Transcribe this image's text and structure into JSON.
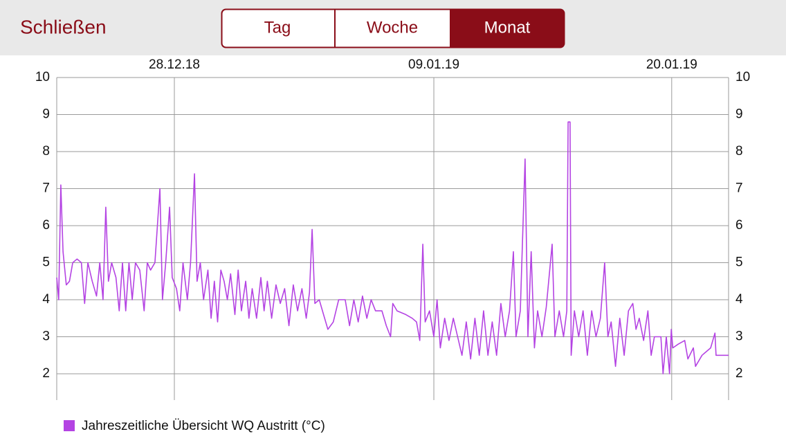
{
  "header": {
    "close": "Schließen",
    "tabs": [
      "Tag",
      "Woche",
      "Monat"
    ]
  },
  "chart_data": {
    "type": "line",
    "x": [
      -5.44,
      -5.35,
      -5.25,
      -5.15,
      -5.0,
      -4.85,
      -4.7,
      -4.5,
      -4.3,
      -4.15,
      -4.0,
      -3.8,
      -3.6,
      -3.45,
      -3.3,
      -3.17,
      -3.05,
      -2.9,
      -2.7,
      -2.55,
      -2.4,
      -2.25,
      -2.1,
      -1.95,
      -1.8,
      -1.6,
      -1.4,
      -1.25,
      -1.1,
      -0.9,
      -0.67,
      -0.55,
      -0.4,
      -0.22,
      -0.1,
      0.1,
      0.25,
      0.4,
      0.6,
      0.75,
      0.93,
      1.05,
      1.2,
      1.35,
      1.55,
      1.7,
      1.85,
      2.0,
      2.15,
      2.3,
      2.45,
      2.6,
      2.8,
      2.95,
      3.1,
      3.3,
      3.45,
      3.6,
      3.8,
      4.0,
      4.15,
      4.3,
      4.5,
      4.7,
      4.9,
      5.1,
      5.3,
      5.5,
      5.7,
      5.9,
      6.1,
      6.25,
      6.37,
      6.5,
      6.7,
      6.9,
      7.1,
      7.35,
      7.6,
      7.9,
      8.1,
      8.3,
      8.5,
      8.7,
      8.9,
      9.1,
      9.3,
      9.6,
      9.8,
      10.0,
      10.1,
      10.3,
      10.7,
      11.0,
      11.2,
      11.35,
      11.49,
      11.6,
      11.8,
      12.0,
      12.15,
      12.3,
      12.5,
      12.7,
      12.9,
      13.1,
      13.3,
      13.5,
      13.7,
      13.9,
      14.1,
      14.3,
      14.5,
      14.7,
      14.9,
      15.1,
      15.3,
      15.5,
      15.68,
      15.8,
      16.0,
      16.22,
      16.35,
      16.5,
      16.65,
      16.8,
      17.0,
      17.2,
      17.47,
      17.6,
      17.8,
      18.0,
      18.15,
      18.21,
      18.3,
      18.35,
      18.5,
      18.7,
      18.9,
      19.1,
      19.3,
      19.5,
      19.7,
      19.9,
      20.05,
      20.2,
      20.4,
      20.6,
      20.8,
      21.0,
      21.2,
      21.35,
      21.5,
      21.7,
      21.9,
      22.05,
      22.2,
      22.5,
      22.6,
      22.75,
      22.9,
      22.98,
      23.05,
      23.3,
      23.6,
      23.75,
      24.0,
      24.1,
      24.4,
      24.8,
      25.0,
      25.05,
      25.63
    ],
    "series": [
      {
        "name": "Jahreszeitliche Übersicht WQ Austritt (°C)",
        "color": "#b443e3",
        "values": [
          4.6,
          4.0,
          7.1,
          5.3,
          4.4,
          4.5,
          5.0,
          5.1,
          5.0,
          3.9,
          5.0,
          4.5,
          4.1,
          5.0,
          4.0,
          6.5,
          4.5,
          5.0,
          4.6,
          3.7,
          5.0,
          3.7,
          5.0,
          4.0,
          5.0,
          4.8,
          3.7,
          5.0,
          4.8,
          5.0,
          7.0,
          4.0,
          5.0,
          6.5,
          4.6,
          4.3,
          3.7,
          5.0,
          4.0,
          5.0,
          7.4,
          4.5,
          5.0,
          4.0,
          4.8,
          3.5,
          4.5,
          3.4,
          4.8,
          4.5,
          4.0,
          4.7,
          3.6,
          4.8,
          3.7,
          4.5,
          3.5,
          4.3,
          3.5,
          4.6,
          3.7,
          4.5,
          3.5,
          4.4,
          3.9,
          4.3,
          3.3,
          4.4,
          3.7,
          4.3,
          3.5,
          4.2,
          5.9,
          3.9,
          4.0,
          3.6,
          3.2,
          3.4,
          4.0,
          4.0,
          3.3,
          4.0,
          3.4,
          4.1,
          3.5,
          4.0,
          3.7,
          3.7,
          3.3,
          3.0,
          3.9,
          3.7,
          3.6,
          3.5,
          3.4,
          2.9,
          5.5,
          3.4,
          3.7,
          3.0,
          4.0,
          2.7,
          3.5,
          2.9,
          3.5,
          3.0,
          2.5,
          3.4,
          2.4,
          3.5,
          2.5,
          3.7,
          2.5,
          3.4,
          2.5,
          3.9,
          3.0,
          3.7,
          5.3,
          3.0,
          3.7,
          7.8,
          3.0,
          5.3,
          2.7,
          3.7,
          3.0,
          3.8,
          5.5,
          3.0,
          3.7,
          3.0,
          3.7,
          8.8,
          8.8,
          2.5,
          3.7,
          3.0,
          3.7,
          2.5,
          3.7,
          3.0,
          3.5,
          5.0,
          3.0,
          3.4,
          2.2,
          3.5,
          2.5,
          3.7,
          3.9,
          3.2,
          3.5,
          2.9,
          3.7,
          2.5,
          3.0,
          3.0,
          2.0,
          3.0,
          2.0,
          3.2,
          2.7,
          2.8,
          2.9,
          2.4,
          2.7,
          2.2,
          2.5,
          2.7,
          3.1,
          2.5,
          2.5
        ]
      }
    ],
    "xlim": [
      -5.44,
      25.63
    ],
    "xticks": [
      {
        "value": 0,
        "label": "28.12.18"
      },
      {
        "value": 12,
        "label": "09.01.19"
      },
      {
        "value": 23,
        "label": "20.01.19"
      }
    ],
    "ylim": [
      1.29,
      10
    ],
    "yticks": [
      2,
      3,
      4,
      5,
      6,
      7,
      8,
      9,
      10
    ],
    "grid": true
  }
}
